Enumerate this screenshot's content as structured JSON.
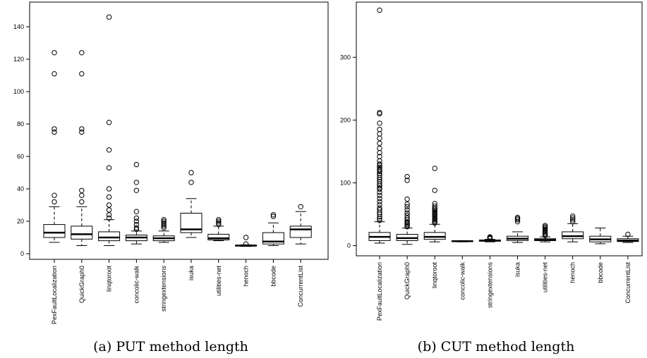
{
  "chart_data": [
    {
      "type": "box",
      "caption": "(a) PUT method length",
      "ylim": [
        0,
        150
      ],
      "yticks": [
        0,
        20,
        40,
        60,
        80,
        100,
        120,
        140
      ],
      "categories": [
        "PexFaultLocalization",
        "QuickGraph0",
        "linqtoroot",
        "concolic-walk",
        "stringextensions",
        "isuka",
        "utilities-net",
        "henoch",
        "bbcode",
        "ConcurrentList"
      ],
      "boxes": [
        {
          "whisker_low": 7,
          "q1": 10,
          "median": 13,
          "q3": 18,
          "whisker_high": 29,
          "outliers": [
            32,
            36,
            75,
            77,
            111,
            124
          ]
        },
        {
          "whisker_low": 5,
          "q1": 9,
          "median": 12,
          "q3": 17,
          "whisker_high": 29,
          "outliers": [
            32,
            36,
            39,
            75,
            77,
            111,
            124
          ]
        },
        {
          "whisker_low": 5,
          "q1": 8,
          "median": 10,
          "q3": 13.5,
          "whisker_high": 21,
          "outliers": [
            22,
            24,
            27,
            30,
            35,
            40,
            53,
            64,
            81,
            146
          ]
        },
        {
          "whisker_low": 6,
          "q1": 8,
          "median": 10,
          "q3": 11.5,
          "whisker_high": 14,
          "outliers": [
            15,
            16,
            18,
            20,
            22,
            26,
            39,
            44,
            55
          ]
        },
        {
          "whisker_low": 7,
          "q1": 8,
          "median": 9.5,
          "q3": 11,
          "whisker_high": 14,
          "outliers": [
            16,
            17,
            18,
            19,
            20,
            21
          ]
        },
        {
          "whisker_low": 10,
          "q1": 13,
          "median": 15,
          "q3": 25,
          "whisker_high": 34,
          "outliers": [
            44,
            50
          ]
        },
        {
          "whisker_low": 8,
          "q1": 8.5,
          "median": 9.5,
          "q3": 12,
          "whisker_high": 17,
          "outliers": [
            18,
            19,
            20,
            21
          ]
        },
        {
          "whisker_low": 4.5,
          "q1": 4.7,
          "median": 5,
          "q3": 5.3,
          "whisker_high": 5.5,
          "outliers": [
            6,
            10
          ]
        },
        {
          "whisker_low": 5,
          "q1": 6,
          "median": 7.5,
          "q3": 13,
          "whisker_high": 19,
          "outliers": [
            23,
            24
          ]
        },
        {
          "whisker_low": 6,
          "q1": 10,
          "median": 15,
          "q3": 17,
          "whisker_high": 26,
          "outliers": [
            29
          ]
        }
      ]
    },
    {
      "type": "box",
      "caption": "(b) CUT method length",
      "ylim": [
        -5,
        380
      ],
      "yticks": [
        0,
        100,
        200,
        300
      ],
      "categories": [
        "PexFaultLocalization",
        "QuickGraph0",
        "linqtoroot",
        "concolic-walk",
        "stringextensions",
        "isuka",
        "utilities-net",
        "henoch",
        "bbcode",
        "ConcurrentList"
      ],
      "boxes": [
        {
          "whisker_low": 4,
          "q1": 8,
          "median": 14,
          "q3": 21,
          "whisker_high": 38,
          "outliers": [
            40,
            43,
            46,
            50,
            53,
            57,
            60,
            65,
            70,
            75,
            80,
            85,
            90,
            92,
            95,
            98,
            102,
            105,
            108,
            112,
            115,
            118,
            120,
            122,
            125,
            128,
            130,
            135,
            142,
            148,
            155,
            163,
            171,
            178,
            185,
            195,
            210,
            212,
            375
          ]
        },
        {
          "whisker_low": 2,
          "q1": 8,
          "median": 12,
          "q3": 18,
          "whisker_high": 28,
          "outliers": [
            30,
            32,
            34,
            36,
            38,
            41,
            44,
            48,
            52,
            57,
            62,
            66,
            74,
            104,
            110
          ]
        },
        {
          "whisker_low": 6,
          "q1": 10,
          "median": 14,
          "q3": 21,
          "whisker_high": 34,
          "outliers": [
            36,
            38,
            40,
            42,
            44,
            46,
            48,
            50,
            52,
            54,
            56,
            58,
            60,
            63,
            67,
            88,
            123
          ]
        },
        {
          "whisker_low": 6,
          "q1": 6.5,
          "median": 7,
          "q3": 7.5,
          "whisker_high": 8,
          "outliers": []
        },
        {
          "whisker_low": 6,
          "q1": 7,
          "median": 8,
          "q3": 9,
          "whisker_high": 10,
          "outliers": [
            11,
            12,
            13,
            14
          ]
        },
        {
          "whisker_low": 5,
          "q1": 8,
          "median": 11,
          "q3": 15,
          "whisker_high": 22,
          "outliers": [
            38,
            41,
            43,
            45
          ]
        },
        {
          "whisker_low": 6,
          "q1": 8,
          "median": 9,
          "q3": 11,
          "whisker_high": 14,
          "outliers": [
            16,
            18,
            20,
            22,
            24,
            26,
            28,
            30,
            32
          ]
        },
        {
          "whisker_low": 6,
          "q1": 11,
          "median": 15,
          "q3": 22,
          "whisker_high": 35,
          "outliers": [
            38,
            41,
            44,
            47
          ]
        },
        {
          "whisker_low": 3,
          "q1": 6,
          "median": 10,
          "q3": 15,
          "whisker_high": 28,
          "outliers": []
        },
        {
          "whisker_low": 5,
          "q1": 6.5,
          "median": 8,
          "q3": 11,
          "whisker_high": 15,
          "outliers": [
            18
          ]
        }
      ]
    }
  ]
}
